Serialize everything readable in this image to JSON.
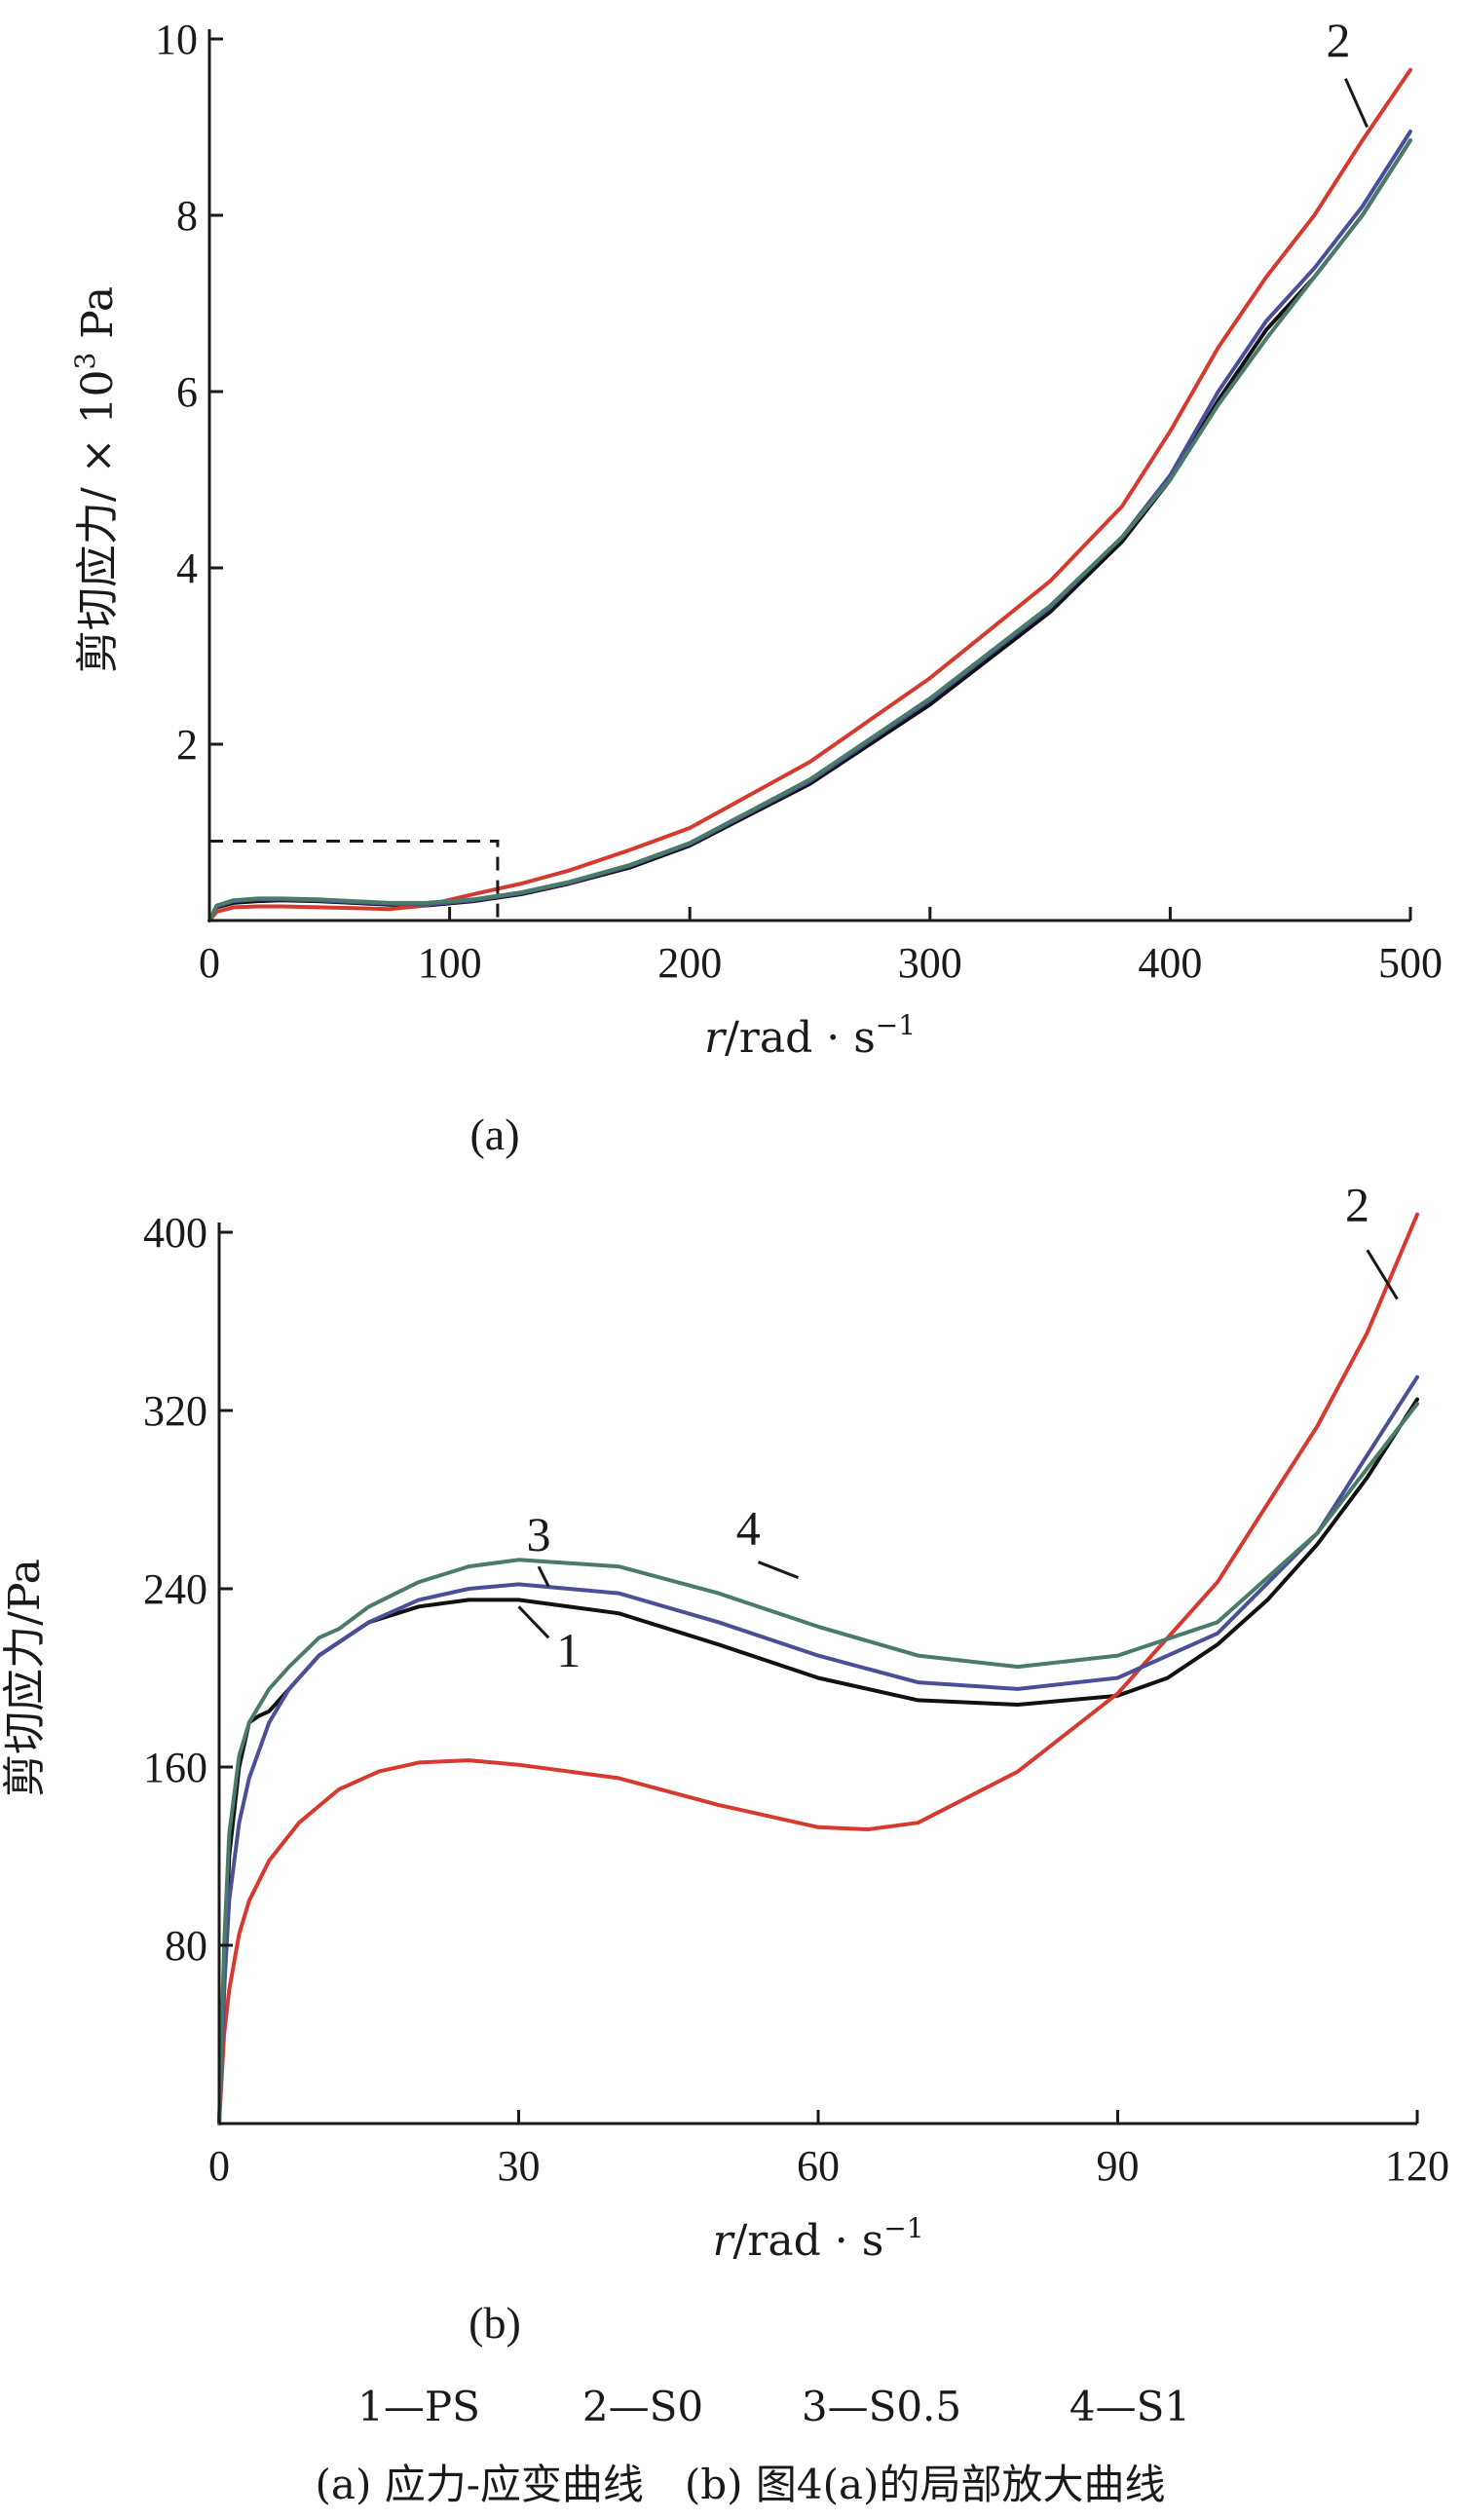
{
  "chart_data": [
    {
      "type": "line",
      "panel_label": "(a)",
      "xlabel_var": "r",
      "xlabel_unit": "/rad · s",
      "xlabel_exp": "−1",
      "ylabel_text": "剪切应力/ × 10",
      "ylabel_exp": "3",
      "ylabel_unit": " Pa",
      "xlim": [
        0,
        500
      ],
      "ylim": [
        0,
        10
      ],
      "x_ticks": [
        0,
        100,
        200,
        300,
        400,
        500
      ],
      "y_ticks": [
        2,
        4,
        6,
        8,
        10
      ],
      "y_tick_labels": [
        "2",
        "4",
        "6",
        "8",
        "10"
      ],
      "x_tick_labels": [
        "0",
        "100",
        "200",
        "300",
        "400",
        "500"
      ],
      "inset_box": {
        "x": [
          0,
          120
        ],
        "y": [
          0,
          0.9
        ]
      },
      "series": [
        {
          "id": "1",
          "color": "#111111",
          "x": [
            0,
            3,
            10,
            20,
            30,
            45,
            60,
            75,
            90,
            110,
            130,
            150,
            175,
            200,
            250,
            300,
            350,
            380,
            400,
            420,
            440,
            460,
            480,
            500
          ],
          "y": [
            0,
            0.15,
            0.2,
            0.22,
            0.23,
            0.22,
            0.2,
            0.18,
            0.17,
            0.22,
            0.3,
            0.42,
            0.6,
            0.85,
            1.55,
            2.45,
            3.5,
            4.3,
            5.0,
            5.9,
            6.7,
            7.3,
            8.0,
            8.85
          ],
          "label_pos": null
        },
        {
          "id": "2",
          "color": "#d63a2f",
          "x": [
            0,
            3,
            10,
            20,
            30,
            45,
            60,
            75,
            90,
            110,
            130,
            150,
            175,
            200,
            250,
            300,
            350,
            380,
            400,
            420,
            440,
            460,
            480,
            500
          ],
          "y": [
            0,
            0.1,
            0.15,
            0.16,
            0.16,
            0.15,
            0.14,
            0.13,
            0.17,
            0.3,
            0.42,
            0.57,
            0.8,
            1.05,
            1.8,
            2.75,
            3.85,
            4.7,
            5.55,
            6.5,
            7.3,
            8.0,
            8.85,
            9.65
          ],
          "label_pos": [
            470,
            9.8
          ]
        },
        {
          "id": "3",
          "color": "#4a4f98",
          "x": [
            0,
            3,
            10,
            20,
            30,
            45,
            60,
            75,
            90,
            110,
            130,
            150,
            175,
            200,
            250,
            300,
            350,
            380,
            400,
            420,
            440,
            460,
            480,
            500
          ],
          "y": [
            0,
            0.16,
            0.22,
            0.24,
            0.24,
            0.23,
            0.21,
            0.19,
            0.18,
            0.23,
            0.31,
            0.43,
            0.62,
            0.87,
            1.58,
            2.5,
            3.55,
            4.35,
            5.05,
            6.0,
            6.8,
            7.4,
            8.1,
            8.95
          ],
          "label_pos": null
        },
        {
          "id": "4",
          "color": "#4a7a6a",
          "x": [
            0,
            3,
            10,
            20,
            30,
            45,
            60,
            75,
            90,
            110,
            130,
            150,
            175,
            200,
            250,
            300,
            350,
            380,
            400,
            420,
            440,
            460,
            480,
            500
          ],
          "y": [
            0,
            0.17,
            0.23,
            0.25,
            0.25,
            0.24,
            0.22,
            0.2,
            0.2,
            0.24,
            0.32,
            0.44,
            0.63,
            0.88,
            1.6,
            2.52,
            3.57,
            4.35,
            5.0,
            5.85,
            6.6,
            7.3,
            8.0,
            8.85
          ],
          "label_pos": null
        }
      ]
    },
    {
      "type": "line",
      "panel_label": "(b)",
      "xlabel_var": "r",
      "xlabel_unit": "/rad · s",
      "xlabel_exp": "−1",
      "ylabel_text": "剪切应力/Pa",
      "ylabel_exp": "",
      "ylabel_unit": "",
      "xlim": [
        0,
        120
      ],
      "ylim": [
        0,
        400
      ],
      "x_ticks": [
        0,
        30,
        60,
        90,
        120
      ],
      "y_ticks": [
        80,
        160,
        240,
        320,
        400
      ],
      "y_tick_labels": [
        "80",
        "160",
        "240",
        "320",
        "400"
      ],
      "x_tick_labels": [
        "0",
        "30",
        "60",
        "90",
        "120"
      ],
      "series": [
        {
          "id": "1",
          "color": "#111111",
          "x": [
            0,
            0.5,
            1,
            2,
            3,
            4,
            5,
            7,
            10,
            15,
            20,
            25,
            30,
            40,
            50,
            60,
            70,
            80,
            90,
            95,
            100,
            105,
            110,
            115,
            120
          ],
          "y": [
            0,
            60,
            120,
            160,
            180,
            183,
            185,
            195,
            210,
            225,
            232,
            235,
            235,
            229,
            215,
            200,
            190,
            188,
            192,
            200,
            215,
            235,
            260,
            290,
            325
          ],
          "label_pos": [
            35,
            205
          ]
        },
        {
          "id": "2",
          "color": "#d63a2f",
          "x": [
            0,
            0.5,
            1,
            2,
            3,
            5,
            8,
            12,
            16,
            20,
            25,
            30,
            40,
            50,
            60,
            65,
            70,
            80,
            90,
            100,
            110,
            115,
            120
          ],
          "y": [
            0,
            40,
            60,
            85,
            100,
            118,
            135,
            150,
            158,
            162,
            163,
            161,
            155,
            143,
            133,
            132,
            135,
            158,
            193,
            243,
            313,
            355,
            408
          ],
          "label_pos": [
            114,
            405
          ]
        },
        {
          "id": "3",
          "color": "#4a4f98",
          "x": [
            0,
            0.5,
            1,
            2,
            3,
            5,
            7,
            10,
            15,
            20,
            25,
            30,
            40,
            50,
            60,
            70,
            80,
            90,
            100,
            110,
            120
          ],
          "y": [
            0,
            60,
            100,
            135,
            155,
            180,
            195,
            210,
            225,
            235,
            240,
            242,
            238,
            225,
            210,
            198,
            195,
            200,
            220,
            265,
            335
          ],
          "label_pos": [
            32,
            257
          ]
        },
        {
          "id": "4",
          "color": "#4a7a6a",
          "x": [
            0,
            0.5,
            1,
            2,
            3,
            5,
            7,
            10,
            12,
            15,
            20,
            25,
            30,
            40,
            50,
            60,
            70,
            80,
            90,
            100,
            110,
            120
          ],
          "y": [
            0,
            80,
            130,
            165,
            180,
            195,
            205,
            218,
            222,
            232,
            243,
            250,
            253,
            250,
            238,
            223,
            210,
            205,
            210,
            225,
            265,
            323
          ],
          "label_pos": [
            53,
            260
          ]
        }
      ]
    }
  ],
  "legend": [
    "1—PS",
    "2—S0",
    "3—S0.5",
    "4—S1"
  ],
  "caption": "(a) 应力-应变曲线　(b) 图4(a)的局部放大曲线"
}
